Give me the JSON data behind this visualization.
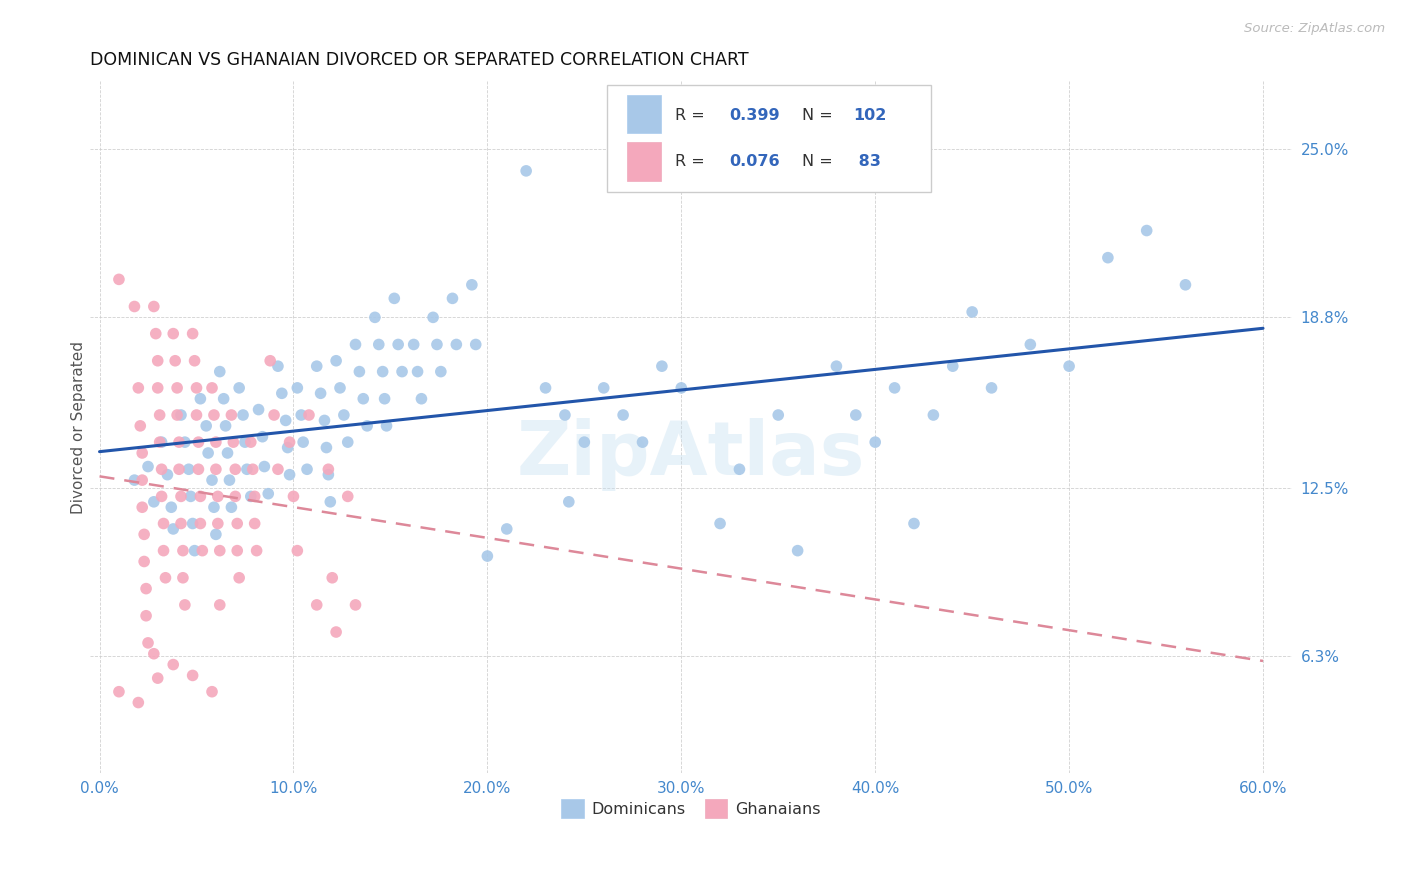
{
  "title": "DOMINICAN VS GHANAIAN DIVORCED OR SEPARATED CORRELATION CHART",
  "source": "Source: ZipAtlas.com",
  "ylabel": "Divorced or Separated",
  "xlabel_ticks": [
    "0.0%",
    "10.0%",
    "20.0%",
    "30.0%",
    "40.0%",
    "50.0%",
    "60.0%"
  ],
  "xlabel_vals": [
    0.0,
    0.1,
    0.2,
    0.3,
    0.4,
    0.5,
    0.6
  ],
  "ylabel_ticks": [
    "6.3%",
    "12.5%",
    "18.8%",
    "25.0%"
  ],
  "ylabel_vals": [
    0.063,
    0.125,
    0.188,
    0.25
  ],
  "xlim": [
    -0.005,
    0.615
  ],
  "ylim": [
    0.02,
    0.275
  ],
  "dominican_color": "#a8c8e8",
  "ghanaian_color": "#f4a8bc",
  "dominican_line_color": "#2255aa",
  "ghanaian_line_color": "#dd8899",
  "watermark": "ZipAtlas",
  "background_color": "#ffffff",
  "dominican_scatter": [
    [
      0.018,
      0.128
    ],
    [
      0.025,
      0.133
    ],
    [
      0.028,
      0.12
    ],
    [
      0.032,
      0.142
    ],
    [
      0.035,
      0.13
    ],
    [
      0.037,
      0.118
    ],
    [
      0.038,
      0.11
    ],
    [
      0.042,
      0.152
    ],
    [
      0.044,
      0.142
    ],
    [
      0.046,
      0.132
    ],
    [
      0.047,
      0.122
    ],
    [
      0.048,
      0.112
    ],
    [
      0.049,
      0.102
    ],
    [
      0.052,
      0.158
    ],
    [
      0.055,
      0.148
    ],
    [
      0.056,
      0.138
    ],
    [
      0.058,
      0.128
    ],
    [
      0.059,
      0.118
    ],
    [
      0.06,
      0.108
    ],
    [
      0.062,
      0.168
    ],
    [
      0.064,
      0.158
    ],
    [
      0.065,
      0.148
    ],
    [
      0.066,
      0.138
    ],
    [
      0.067,
      0.128
    ],
    [
      0.068,
      0.118
    ],
    [
      0.072,
      0.162
    ],
    [
      0.074,
      0.152
    ],
    [
      0.075,
      0.142
    ],
    [
      0.076,
      0.132
    ],
    [
      0.078,
      0.122
    ],
    [
      0.082,
      0.154
    ],
    [
      0.084,
      0.144
    ],
    [
      0.085,
      0.133
    ],
    [
      0.087,
      0.123
    ],
    [
      0.092,
      0.17
    ],
    [
      0.094,
      0.16
    ],
    [
      0.096,
      0.15
    ],
    [
      0.097,
      0.14
    ],
    [
      0.098,
      0.13
    ],
    [
      0.102,
      0.162
    ],
    [
      0.104,
      0.152
    ],
    [
      0.105,
      0.142
    ],
    [
      0.107,
      0.132
    ],
    [
      0.112,
      0.17
    ],
    [
      0.114,
      0.16
    ],
    [
      0.116,
      0.15
    ],
    [
      0.117,
      0.14
    ],
    [
      0.118,
      0.13
    ],
    [
      0.119,
      0.12
    ],
    [
      0.122,
      0.172
    ],
    [
      0.124,
      0.162
    ],
    [
      0.126,
      0.152
    ],
    [
      0.128,
      0.142
    ],
    [
      0.132,
      0.178
    ],
    [
      0.134,
      0.168
    ],
    [
      0.136,
      0.158
    ],
    [
      0.138,
      0.148
    ],
    [
      0.142,
      0.188
    ],
    [
      0.144,
      0.178
    ],
    [
      0.146,
      0.168
    ],
    [
      0.147,
      0.158
    ],
    [
      0.148,
      0.148
    ],
    [
      0.152,
      0.195
    ],
    [
      0.154,
      0.178
    ],
    [
      0.156,
      0.168
    ],
    [
      0.162,
      0.178
    ],
    [
      0.164,
      0.168
    ],
    [
      0.166,
      0.158
    ],
    [
      0.172,
      0.188
    ],
    [
      0.174,
      0.178
    ],
    [
      0.176,
      0.168
    ],
    [
      0.182,
      0.195
    ],
    [
      0.184,
      0.178
    ],
    [
      0.192,
      0.2
    ],
    [
      0.194,
      0.178
    ],
    [
      0.2,
      0.1
    ],
    [
      0.21,
      0.11
    ],
    [
      0.22,
      0.242
    ],
    [
      0.23,
      0.162
    ],
    [
      0.24,
      0.152
    ],
    [
      0.242,
      0.12
    ],
    [
      0.25,
      0.142
    ],
    [
      0.26,
      0.162
    ],
    [
      0.27,
      0.152
    ],
    [
      0.28,
      0.142
    ],
    [
      0.29,
      0.17
    ],
    [
      0.3,
      0.162
    ],
    [
      0.32,
      0.112
    ],
    [
      0.33,
      0.132
    ],
    [
      0.35,
      0.152
    ],
    [
      0.36,
      0.102
    ],
    [
      0.38,
      0.17
    ],
    [
      0.39,
      0.152
    ],
    [
      0.4,
      0.142
    ],
    [
      0.41,
      0.162
    ],
    [
      0.42,
      0.112
    ],
    [
      0.43,
      0.152
    ],
    [
      0.44,
      0.17
    ],
    [
      0.45,
      0.19
    ],
    [
      0.46,
      0.162
    ],
    [
      0.48,
      0.178
    ],
    [
      0.5,
      0.17
    ],
    [
      0.52,
      0.21
    ],
    [
      0.54,
      0.22
    ],
    [
      0.56,
      0.2
    ]
  ],
  "ghanaian_scatter": [
    [
      0.01,
      0.202
    ],
    [
      0.018,
      0.192
    ],
    [
      0.02,
      0.162
    ],
    [
      0.021,
      0.148
    ],
    [
      0.022,
      0.138
    ],
    [
      0.022,
      0.128
    ],
    [
      0.022,
      0.118
    ],
    [
      0.023,
      0.108
    ],
    [
      0.023,
      0.098
    ],
    [
      0.024,
      0.088
    ],
    [
      0.024,
      0.078
    ],
    [
      0.025,
      0.068
    ],
    [
      0.028,
      0.192
    ],
    [
      0.029,
      0.182
    ],
    [
      0.03,
      0.172
    ],
    [
      0.03,
      0.162
    ],
    [
      0.031,
      0.152
    ],
    [
      0.031,
      0.142
    ],
    [
      0.032,
      0.132
    ],
    [
      0.032,
      0.122
    ],
    [
      0.033,
      0.112
    ],
    [
      0.033,
      0.102
    ],
    [
      0.034,
      0.092
    ],
    [
      0.038,
      0.182
    ],
    [
      0.039,
      0.172
    ],
    [
      0.04,
      0.162
    ],
    [
      0.04,
      0.152
    ],
    [
      0.041,
      0.142
    ],
    [
      0.041,
      0.132
    ],
    [
      0.042,
      0.122
    ],
    [
      0.042,
      0.112
    ],
    [
      0.043,
      0.102
    ],
    [
      0.043,
      0.092
    ],
    [
      0.044,
      0.082
    ],
    [
      0.048,
      0.182
    ],
    [
      0.049,
      0.172
    ],
    [
      0.05,
      0.162
    ],
    [
      0.05,
      0.152
    ],
    [
      0.051,
      0.142
    ],
    [
      0.051,
      0.132
    ],
    [
      0.052,
      0.122
    ],
    [
      0.052,
      0.112
    ],
    [
      0.053,
      0.102
    ],
    [
      0.058,
      0.162
    ],
    [
      0.059,
      0.152
    ],
    [
      0.06,
      0.142
    ],
    [
      0.06,
      0.132
    ],
    [
      0.061,
      0.122
    ],
    [
      0.061,
      0.112
    ],
    [
      0.062,
      0.102
    ],
    [
      0.062,
      0.082
    ],
    [
      0.068,
      0.152
    ],
    [
      0.069,
      0.142
    ],
    [
      0.07,
      0.132
    ],
    [
      0.07,
      0.122
    ],
    [
      0.071,
      0.112
    ],
    [
      0.071,
      0.102
    ],
    [
      0.072,
      0.092
    ],
    [
      0.078,
      0.142
    ],
    [
      0.079,
      0.132
    ],
    [
      0.08,
      0.122
    ],
    [
      0.08,
      0.112
    ],
    [
      0.081,
      0.102
    ],
    [
      0.088,
      0.172
    ],
    [
      0.09,
      0.152
    ],
    [
      0.092,
      0.132
    ],
    [
      0.098,
      0.142
    ],
    [
      0.1,
      0.122
    ],
    [
      0.102,
      0.102
    ],
    [
      0.108,
      0.152
    ],
    [
      0.112,
      0.082
    ],
    [
      0.118,
      0.132
    ],
    [
      0.12,
      0.092
    ],
    [
      0.122,
      0.072
    ],
    [
      0.128,
      0.122
    ],
    [
      0.132,
      0.082
    ],
    [
      0.01,
      0.05
    ],
    [
      0.02,
      0.046
    ],
    [
      0.028,
      0.064
    ],
    [
      0.038,
      0.06
    ],
    [
      0.048,
      0.056
    ],
    [
      0.058,
      0.05
    ],
    [
      0.03,
      0.055
    ]
  ]
}
